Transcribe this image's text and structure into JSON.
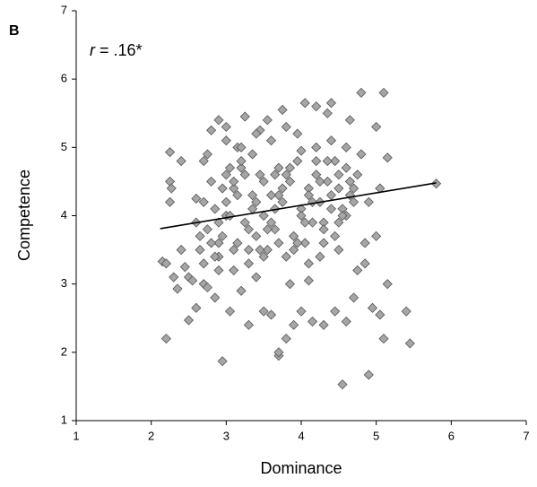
{
  "chart_data": {
    "type": "scatter",
    "panel_label": "B",
    "annotation": {
      "variable": "r",
      "text": "= .16*"
    },
    "xlabel": "Dominance",
    "ylabel": "Competence",
    "xlim": [
      1,
      7
    ],
    "ylim": [
      1,
      7
    ],
    "xticks": [
      1,
      2,
      3,
      4,
      5,
      6,
      7
    ],
    "yticks": [
      1,
      2,
      3,
      4,
      5,
      6,
      7
    ],
    "grid": false,
    "color": "#a6a6a6",
    "edge_color": "#555555",
    "line_color": "#000000",
    "trend": {
      "x": [
        2.12,
        5.8
      ],
      "y": [
        3.81,
        4.48
      ]
    },
    "x": [
      2.15,
      2.2,
      2.2,
      2.25,
      2.25,
      2.27,
      2.25,
      2.3,
      2.35,
      2.4,
      2.4,
      2.45,
      2.5,
      2.5,
      2.55,
      2.6,
      2.6,
      2.65,
      2.7,
      2.7,
      2.75,
      2.8,
      2.85,
      2.9,
      2.95,
      2.9,
      3.0,
      3.0,
      3.05,
      3.1,
      3.15,
      3.2,
      3.25,
      3.3,
      3.35,
      3.4,
      3.45,
      3.5,
      3.55,
      3.6,
      3.65,
      3.7,
      3.7,
      3.75,
      3.8,
      3.85,
      3.9,
      3.95,
      4.0,
      4.05,
      4.1,
      4.15,
      4.2,
      4.25,
      4.3,
      4.35,
      4.4,
      4.45,
      4.5,
      4.55,
      4.6,
      4.65,
      4.7,
      4.75,
      4.8,
      4.85,
      4.9,
      4.95,
      5.0,
      5.05,
      5.1,
      5.1,
      5.15,
      5.15,
      5.4,
      5.45,
      5.8,
      5.0,
      4.9,
      4.8,
      4.85,
      5.05,
      2.6,
      2.7,
      2.8,
      2.9,
      3.0,
      3.1,
      3.2,
      3.3,
      3.4,
      3.5,
      3.6,
      3.7,
      3.8,
      3.9,
      4.0,
      4.1,
      4.2,
      4.3,
      4.4,
      4.5,
      4.6,
      4.7,
      2.65,
      2.75,
      2.85,
      2.95,
      3.05,
      3.15,
      3.25,
      3.35,
      3.45,
      3.55,
      3.65,
      3.75,
      3.85,
      3.95,
      4.05,
      4.15,
      4.25,
      4.35,
      4.45,
      4.55,
      4.65,
      2.7,
      2.8,
      2.9,
      3.0,
      3.1,
      3.2,
      3.3,
      3.4,
      3.5,
      3.6,
      3.7,
      3.8,
      3.9,
      4.0,
      4.1,
      4.2,
      4.3,
      4.4,
      4.5,
      4.6,
      2.75,
      2.85,
      2.95,
      3.05,
      3.15,
      3.25,
      3.35,
      3.45,
      3.55,
      3.65,
      3.75,
      3.85,
      3.95,
      4.05,
      4.15,
      4.25,
      4.35,
      4.45,
      4.55,
      4.65,
      4.75,
      2.9,
      3.1,
      3.3,
      3.5,
      3.7,
      3.9,
      4.1,
      4.3,
      4.5,
      4.7,
      3.0,
      3.2,
      3.4,
      3.6,
      3.8,
      4.0,
      4.2,
      4.4,
      4.6
    ],
    "y": [
      3.33,
      3.3,
      2.2,
      4.93,
      4.5,
      4.4,
      4.2,
      3.1,
      2.93,
      3.5,
      4.8,
      3.25,
      3.1,
      2.47,
      3.05,
      2.65,
      4.25,
      3.7,
      4.8,
      3.0,
      2.95,
      5.25,
      2.8,
      5.4,
      1.87,
      3.4,
      5.3,
      4.6,
      2.6,
      3.2,
      5.0,
      2.9,
      5.45,
      2.4,
      4.1,
      3.1,
      5.25,
      2.6,
      5.4,
      2.55,
      4.6,
      1.95,
      2.0,
      5.55,
      2.2,
      3.0,
      2.4,
      5.2,
      2.6,
      5.65,
      3.05,
      2.45,
      5.6,
      3.4,
      2.4,
      5.5,
      5.65,
      2.6,
      3.5,
      1.53,
      2.45,
      5.4,
      2.8,
      3.2,
      5.8,
      3.3,
      1.67,
      2.65,
      5.3,
      2.55,
      5.8,
      2.2,
      3.0,
      4.85,
      2.6,
      2.13,
      4.47,
      3.7,
      4.2,
      4.9,
      3.6,
      4.4,
      3.9,
      4.2,
      4.5,
      3.6,
      4.0,
      4.4,
      4.7,
      3.8,
      4.2,
      4.5,
      3.9,
      4.3,
      4.6,
      3.7,
      4.1,
      4.4,
      4.8,
      3.9,
      4.3,
      4.6,
      4.0,
      4.4,
      3.5,
      3.8,
      4.1,
      4.4,
      4.7,
      3.6,
      3.9,
      4.3,
      4.6,
      3.5,
      3.8,
      4.2,
      4.5,
      4.8,
      3.6,
      3.9,
      4.2,
      4.5,
      4.8,
      4.1,
      4.5,
      3.3,
      3.6,
      3.9,
      4.2,
      4.5,
      4.8,
      3.5,
      3.7,
      4.0,
      4.3,
      4.7,
      3.4,
      3.7,
      4.0,
      4.3,
      4.6,
      3.8,
      4.1,
      4.4,
      4.7,
      4.9,
      3.4,
      3.7,
      4.0,
      4.3,
      4.6,
      4.9,
      3.5,
      3.8,
      4.1,
      4.4,
      4.7,
      3.6,
      3.9,
      4.2,
      4.5,
      4.8,
      3.7,
      4.0,
      4.3,
      4.6,
      3.2,
      3.5,
      3.3,
      3.4,
      3.6,
      3.5,
      3.3,
      3.6,
      3.9,
      4.2,
      5.1,
      5.0,
      5.2,
      5.1,
      5.3,
      4.95,
      5.0,
      5.1,
      5.0
    ]
  }
}
